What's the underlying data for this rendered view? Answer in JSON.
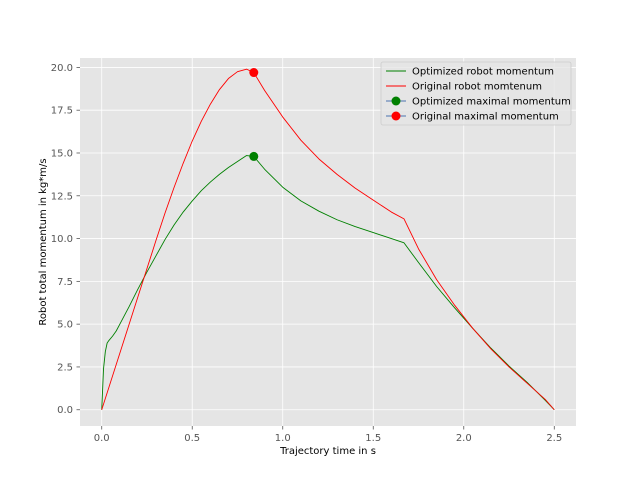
{
  "chart_data": {
    "type": "line",
    "title": "",
    "xlabel": "Trajectory time in s",
    "ylabel": "Robot total momentum in kg*m/s",
    "xlim": [
      -0.12,
      2.62
    ],
    "ylim": [
      -0.95,
      20.55
    ],
    "xticks": [
      0.0,
      0.5,
      1.0,
      1.5,
      2.0,
      2.5
    ],
    "yticks": [
      0.0,
      2.5,
      5.0,
      7.5,
      10.0,
      12.5,
      15.0,
      17.5,
      20.0
    ],
    "xtick_labels": [
      "0.0",
      "0.5",
      "1.0",
      "1.5",
      "2.0",
      "2.5"
    ],
    "ytick_labels": [
      "0.0",
      "2.5",
      "5.0",
      "7.5",
      "10.0",
      "12.5",
      "15.0",
      "17.5",
      "20.0"
    ],
    "grid": true,
    "style": "ggplot",
    "legend_position": "top-right",
    "series": [
      {
        "name": "Optimized robot momentum",
        "kind": "line",
        "color": "#008000",
        "x": [
          0.0,
          0.005,
          0.01,
          0.02,
          0.03,
          0.04,
          0.06,
          0.08,
          0.1,
          0.15,
          0.2,
          0.25,
          0.3,
          0.35,
          0.4,
          0.45,
          0.5,
          0.55,
          0.6,
          0.65,
          0.7,
          0.75,
          0.8,
          0.84,
          0.9,
          1.0,
          1.1,
          1.2,
          1.3,
          1.4,
          1.5,
          1.6,
          1.67,
          1.75,
          1.85,
          1.95,
          2.05,
          2.15,
          2.25,
          2.35,
          2.45,
          2.5
        ],
        "y": [
          0.0,
          1.2,
          2.4,
          3.4,
          3.9,
          4.05,
          4.3,
          4.6,
          5.0,
          6.0,
          7.05,
          8.05,
          9.0,
          9.95,
          10.8,
          11.55,
          12.2,
          12.8,
          13.3,
          13.75,
          14.15,
          14.5,
          14.85,
          14.8,
          14.05,
          13.0,
          12.2,
          11.6,
          11.1,
          10.7,
          10.35,
          10.0,
          9.75,
          8.6,
          7.2,
          5.95,
          4.75,
          3.6,
          2.55,
          1.6,
          0.55,
          0.0
        ]
      },
      {
        "name": "Original robot momtenum",
        "kind": "line",
        "color": "#ff0000",
        "x": [
          0.0,
          0.05,
          0.1,
          0.15,
          0.2,
          0.25,
          0.3,
          0.35,
          0.4,
          0.45,
          0.5,
          0.55,
          0.6,
          0.65,
          0.7,
          0.75,
          0.8,
          0.84,
          0.9,
          1.0,
          1.1,
          1.2,
          1.3,
          1.4,
          1.5,
          1.6,
          1.67,
          1.75,
          1.85,
          1.95,
          2.05,
          2.15,
          2.25,
          2.35,
          2.45,
          2.5
        ],
        "y": [
          0.0,
          1.65,
          3.3,
          4.95,
          6.6,
          8.25,
          9.9,
          11.5,
          13.0,
          14.4,
          15.7,
          16.85,
          17.85,
          18.7,
          19.35,
          19.75,
          19.9,
          19.7,
          18.65,
          17.1,
          15.75,
          14.65,
          13.75,
          12.95,
          12.25,
          11.55,
          11.15,
          9.4,
          7.6,
          6.1,
          4.75,
          3.55,
          2.5,
          1.55,
          0.6,
          0.0
        ]
      },
      {
        "name": "Optimized maximal momentum",
        "kind": "marker",
        "color": "#008000",
        "x": [
          0.84
        ],
        "y": [
          14.8
        ]
      },
      {
        "name": "Original maximal momentum",
        "kind": "marker",
        "color": "#ff0000",
        "x": [
          0.84
        ],
        "y": [
          19.7
        ]
      }
    ],
    "colors": {
      "plot_background": "#e5e5e5",
      "grid": "#ffffff",
      "optimized": "#008000",
      "original": "#ff0000"
    }
  }
}
